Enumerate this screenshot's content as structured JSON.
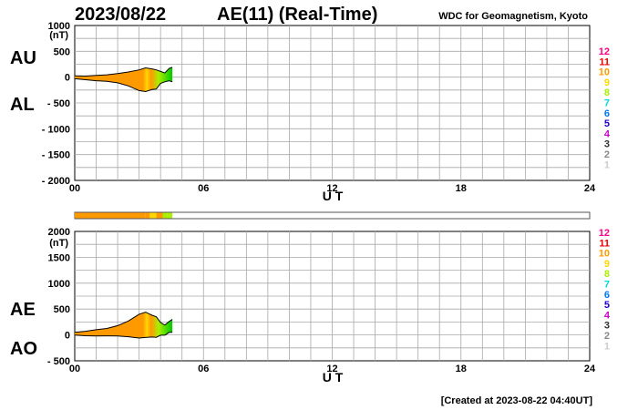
{
  "header": {
    "date": "2023/08/22",
    "title": "AE(11) (Real-Time)",
    "source": "WDC for Geomagnetism, Kyoto"
  },
  "footer": {
    "created": "[Created at 2023-08-22 04:40UT]"
  },
  "colors": {
    "grid": "#a8a8a8",
    "axis": "#000000",
    "outline": "#000000",
    "bar_border": "#555555"
  },
  "station_scale": {
    "labels": [
      "12",
      "11",
      "10",
      "9",
      "8",
      "7",
      "6",
      "5",
      "4",
      "3",
      "2",
      "1"
    ],
    "colors": [
      "#ff0088",
      "#ee0000",
      "#ff9900",
      "#ffd700",
      "#aaee00",
      "#00d8d8",
      "#0077ff",
      "#2200cc",
      "#cc00cc",
      "#333333",
      "#888888",
      "#cccccc"
    ]
  },
  "chart_data": [
    {
      "type": "area",
      "title": "",
      "panel": "upper",
      "left_labels": [
        "AU",
        "AL"
      ],
      "xlabel": "U T",
      "ylabel": "(nT)",
      "x_tick_labels": [
        "00",
        "06",
        "12",
        "18",
        "24"
      ],
      "y_tick_labels": [
        "1000",
        "500",
        "0",
        "- 500",
        "- 1000",
        "- 1500",
        "- 2000"
      ],
      "xlim": [
        0,
        24
      ],
      "ylim": [
        -2000,
        1000
      ],
      "grid": true,
      "series": [
        {
          "name": "AU",
          "x": [
            0,
            0.5,
            1.0,
            1.5,
            2.0,
            2.5,
            3.0,
            3.3,
            3.6,
            3.8,
            4.0,
            4.2,
            4.4,
            4.55
          ],
          "values": [
            25,
            20,
            35,
            45,
            70,
            100,
            140,
            180,
            160,
            140,
            110,
            80,
            170,
            190
          ]
        },
        {
          "name": "AL",
          "x": [
            0,
            0.5,
            1.0,
            1.5,
            2.0,
            2.5,
            3.0,
            3.3,
            3.6,
            3.8,
            4.0,
            4.2,
            4.4,
            4.55
          ],
          "values": [
            -30,
            -50,
            -70,
            -80,
            -110,
            -170,
            -260,
            -280,
            -240,
            -230,
            -120,
            -90,
            -70,
            -90
          ]
        }
      ]
    },
    {
      "type": "area",
      "title": "",
      "panel": "lower",
      "left_labels": [
        "AE",
        "AO"
      ],
      "xlabel": "U T",
      "ylabel": "(nT)",
      "x_tick_labels": [
        "00",
        "06",
        "12",
        "18",
        "24"
      ],
      "y_tick_labels": [
        "2000",
        "1500",
        "1000",
        "500",
        "0",
        "- 500"
      ],
      "xlim": [
        0,
        24
      ],
      "ylim": [
        -500,
        2000
      ],
      "grid": true,
      "series": [
        {
          "name": "AE",
          "x": [
            0,
            0.5,
            1.0,
            1.5,
            2.0,
            2.5,
            3.0,
            3.3,
            3.6,
            3.8,
            4.0,
            4.2,
            4.4,
            4.55
          ],
          "values": [
            50,
            70,
            100,
            125,
            180,
            270,
            400,
            440,
            380,
            350,
            240,
            190,
            260,
            300
          ]
        },
        {
          "name": "AO",
          "x": [
            0,
            0.5,
            1.0,
            1.5,
            2.0,
            2.5,
            3.0,
            3.3,
            3.6,
            3.8,
            4.0,
            4.2,
            4.4,
            4.55
          ],
          "values": [
            -2,
            -15,
            -20,
            -18,
            -20,
            -35,
            -60,
            -50,
            -40,
            -45,
            -5,
            -5,
            50,
            50
          ]
        }
      ],
      "station_count_bar": {
        "x": [
          0,
          3.3,
          3.5,
          3.8,
          4.1,
          4.3,
          4.45,
          4.55
        ],
        "counts": [
          10,
          10,
          9,
          10,
          8,
          8,
          8,
          0
        ]
      }
    }
  ]
}
